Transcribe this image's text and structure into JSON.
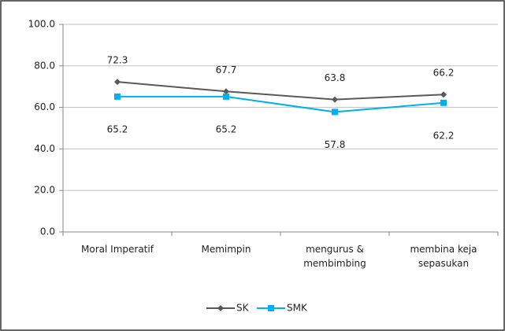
{
  "chart_data": {
    "type": "line",
    "categories": [
      "Moral Imperatif",
      "Memimpin",
      "mengurus & membimbing",
      "membina keja sepasukan"
    ],
    "series": [
      {
        "name": "SK",
        "color": "#595959",
        "marker": "diamond",
        "values": [
          72.3,
          67.7,
          63.8,
          66.2
        ]
      },
      {
        "name": "SMK",
        "color": "#00b0f0",
        "marker": "square",
        "values": [
          65.2,
          65.2,
          57.8,
          62.2
        ]
      }
    ],
    "ylim": [
      0,
      100
    ],
    "yticks": [
      {
        "value": 0,
        "label": "0.0"
      },
      {
        "value": 20,
        "label": "20.0"
      },
      {
        "value": 40,
        "label": "40.0"
      },
      {
        "value": 60,
        "label": "60.0"
      },
      {
        "value": 80,
        "label": "80.0"
      },
      {
        "value": 100,
        "label": "100.0"
      }
    ],
    "grid": true,
    "legend": "bottom"
  }
}
